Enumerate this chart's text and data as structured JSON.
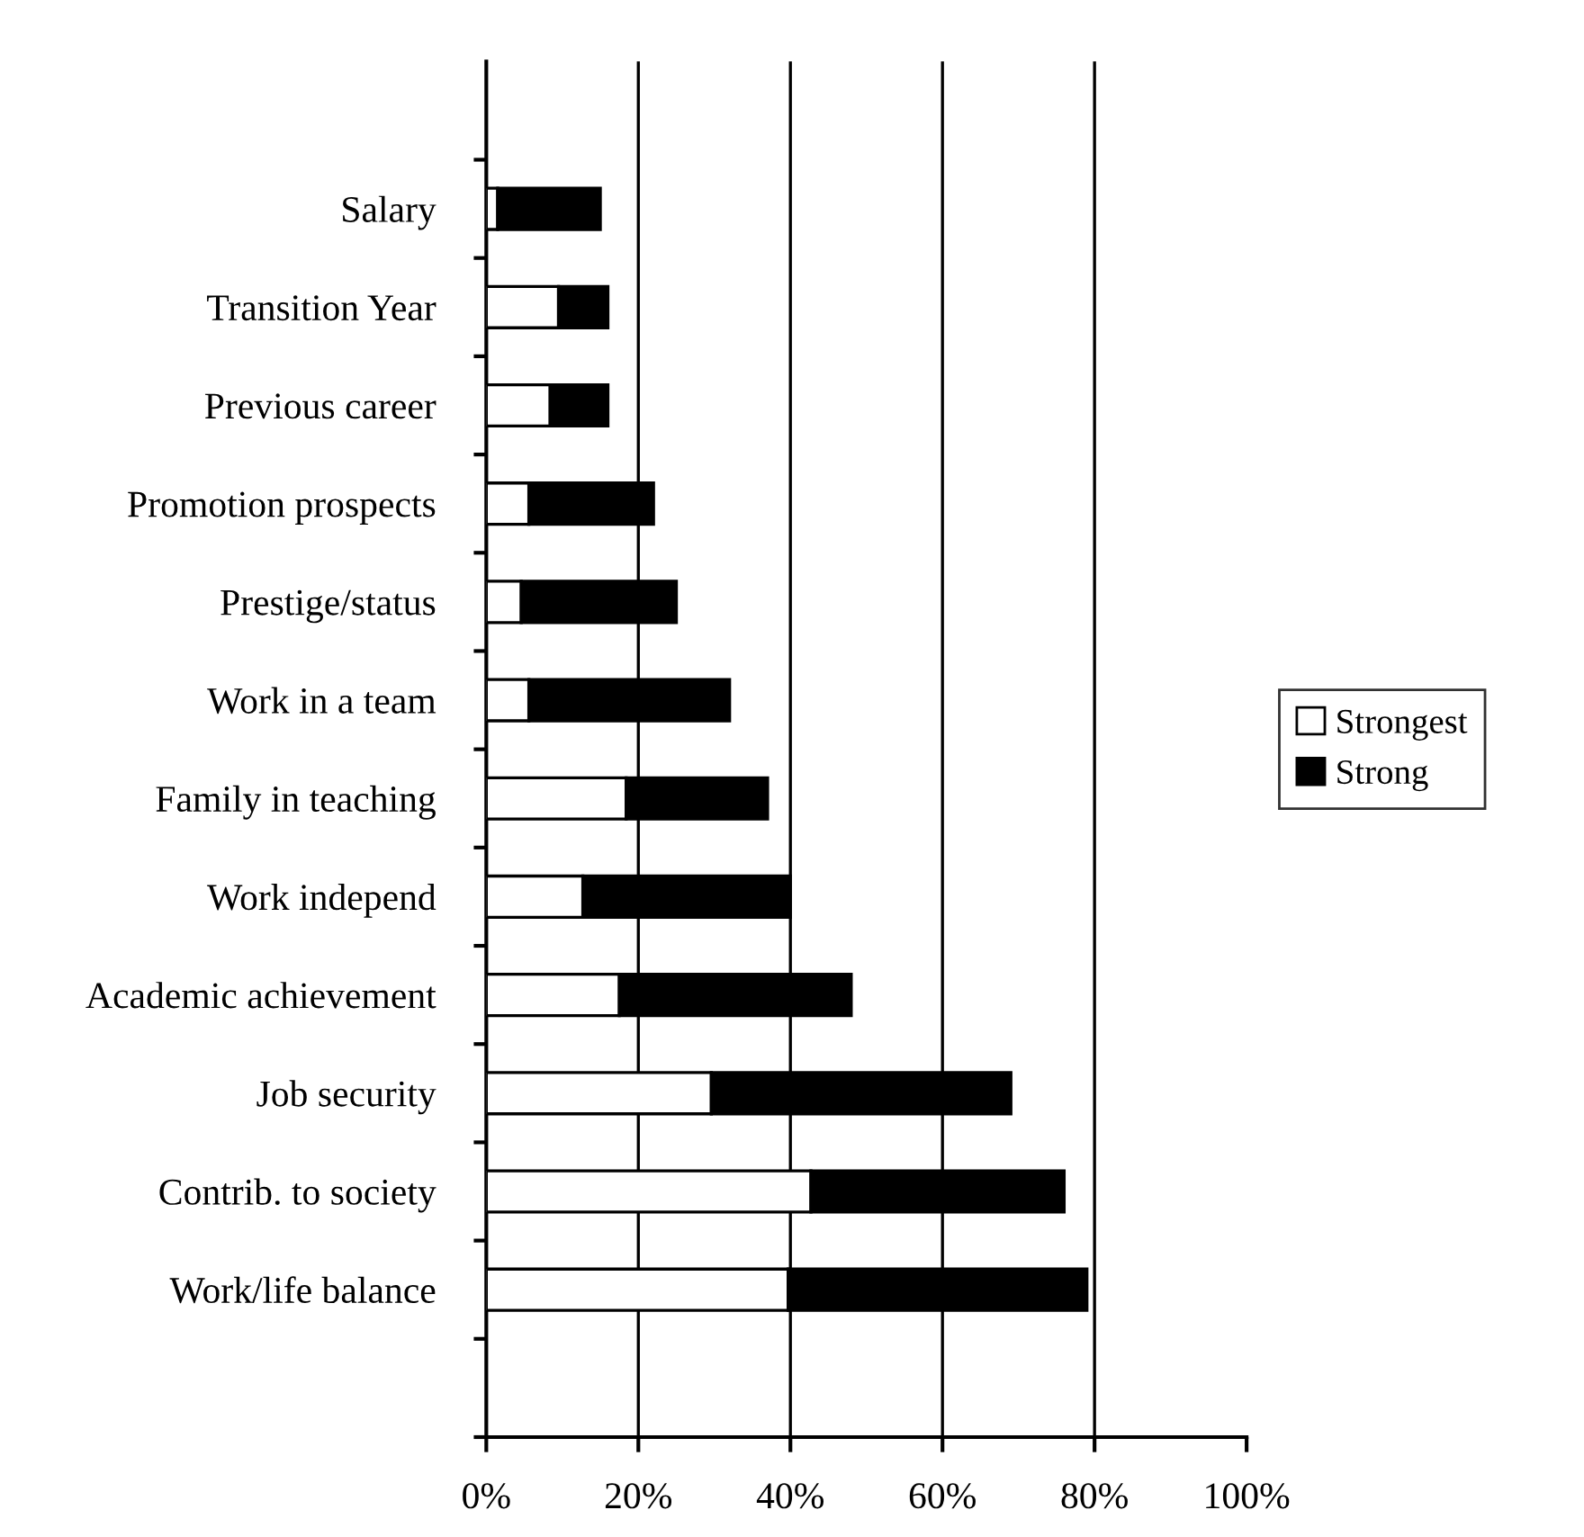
{
  "chart_data": {
    "type": "bar",
    "orientation": "horizontal",
    "stacked": true,
    "categories": [
      "Salary",
      "Transition Year",
      "Previous career",
      "Promotion prospects",
      "Prestige/status",
      "Work in a team",
      "Family in teaching",
      "Work independ",
      "Academic achievement",
      "Job security",
      "Contrib. to society",
      "Work/life balance"
    ],
    "series": [
      {
        "name": "Strongest",
        "color": "#ffffff",
        "values": [
          1.5,
          9.5,
          8.4,
          5.6,
          4.6,
          5.6,
          18.4,
          12.7,
          17.5,
          29.6,
          42.7,
          39.7
        ]
      },
      {
        "name": "Strong",
        "color": "#000000",
        "values": [
          13.5,
          6.5,
          7.6,
          16.4,
          20.4,
          26.4,
          18.6,
          27.3,
          30.5,
          39.4,
          33.3,
          39.3
        ]
      }
    ],
    "xlim": [
      0,
      100
    ],
    "xticks": [
      {
        "value": 0,
        "label": "0%"
      },
      {
        "value": 20,
        "label": "20%"
      },
      {
        "value": 40,
        "label": "40%"
      },
      {
        "value": 60,
        "label": "60%"
      },
      {
        "value": 80,
        "label": "80%"
      },
      {
        "value": 100,
        "label": "100%"
      }
    ],
    "grid": "x",
    "legend": "right"
  }
}
